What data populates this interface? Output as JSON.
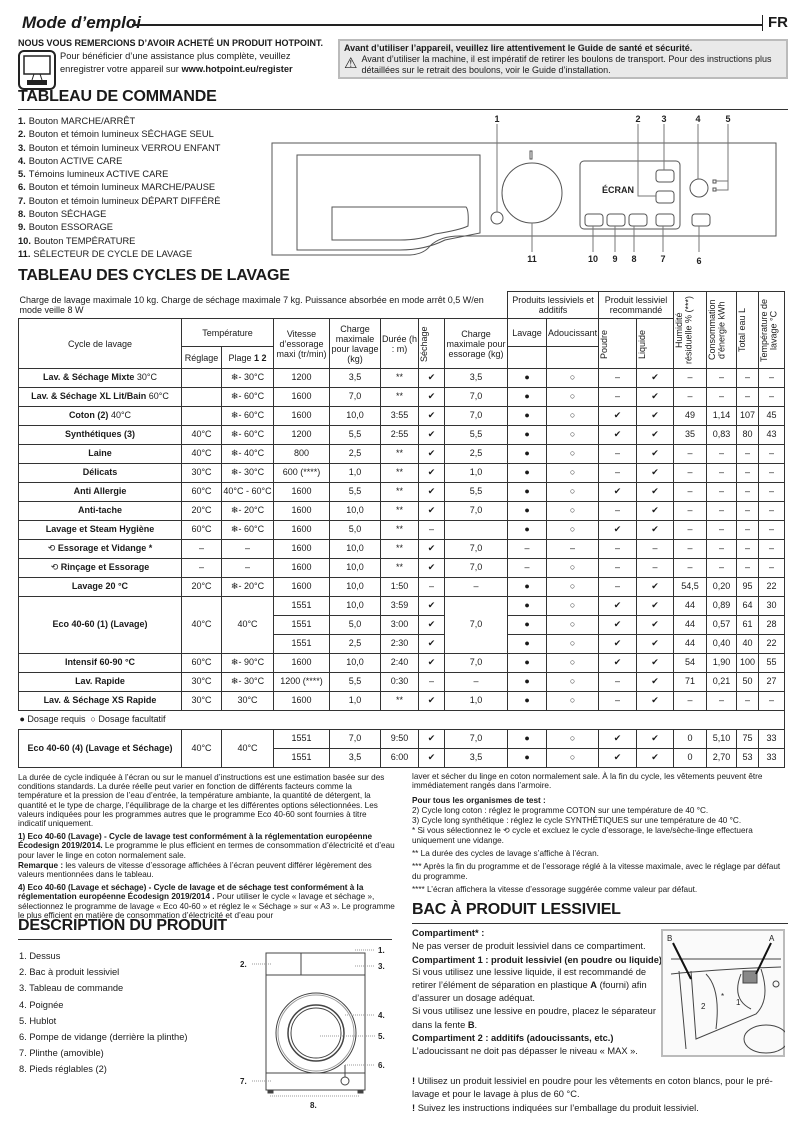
{
  "header": {
    "title": "Mode d’emploi",
    "lang": "FR"
  },
  "intro": {
    "thanks": "NOUS VOUS REMERCIONS D’AVOIR ACHETÉ UN PRODUIT HOTPOINT.",
    "register_line1": "Pour bénéficier d’une assistance plus complète, veuillez",
    "register_line2": "enregistrer votre appareil sur ",
    "register_url": "www.hotpoint.eu/register"
  },
  "warning": {
    "title": "Avant d’utiliser l’appareil, veuillez lire attentivement le Guide de santé et sécurité.",
    "text": "Avant d’utiliser la machine, il est impératif de retirer les boulons de transport. Pour des instructions plus détaillées sur le retrait des boulons, voir le Guide d’installation."
  },
  "control_panel": {
    "title": "TABLEAU DE COMMANDE",
    "items": [
      {
        "n": "1.",
        "label": "Bouton MARCHE/ARRÊT"
      },
      {
        "n": "2.",
        "label": "Bouton et témoin lumineux SÉCHAGE SEUL"
      },
      {
        "n": "3.",
        "label": "Bouton et témoin lumineux VERROU ENFANT"
      },
      {
        "n": "4.",
        "label": "Bouton ACTIVE CARE"
      },
      {
        "n": "5.",
        "label": "Témoins lumineux ACTIVE CARE"
      },
      {
        "n": "6.",
        "label": "Bouton et témoin lumineux MARCHE/PAUSE"
      },
      {
        "n": "7.",
        "label": "Bouton et témoin lumineux DÉPART DIFFÉRÉ"
      },
      {
        "n": "8.",
        "label": "Bouton SÉCHAGE"
      },
      {
        "n": "9.",
        "label": "Bouton ESSORAGE"
      },
      {
        "n": "10.",
        "label": "Bouton TEMPÉRATURE"
      },
      {
        "n": "11.",
        "label": "SÉLECTEUR DE CYCLE DE LAVAGE"
      }
    ],
    "diagram": {
      "screen_label": "ÉCRAN",
      "callouts": [
        "1",
        "2",
        "3",
        "4",
        "5",
        "6",
        "7",
        "8",
        "9",
        "10",
        "11"
      ]
    }
  },
  "cycles": {
    "title": "TABLEAU DES CYCLES DE LAVAGE",
    "caption": "Charge de lavage maximale 10 kg. Charge de séchage maximale 7 kg. Puissance absorbée en mode arrêt 0,5 W/en mode veille 8 W",
    "headers": {
      "products": "Produits lessiviels et additifs",
      "recommended": "Produit lessiviel recommandé",
      "humidity": "Humidité résiduelle % (***)",
      "energy": "Consommation d’énergie kWh",
      "water": "Total eau L",
      "wash_temp": "Température de lavage °C",
      "cycle": "Cycle de lavage",
      "temperature": "Température",
      "speed": "Vitesse d’essorage maxi (tr/min)",
      "max_wash": "Charge maximale pour lavage (kg)",
      "duration": "Durée (h : m)",
      "drying": "Séchage",
      "max_spin": "Charge maximale pour essorage (kg)",
      "wash": "Lavage",
      "softener": "Adoucissant",
      "powder": "Poudre",
      "liquid": "Liquide",
      "setting": "Réglage",
      "range": "Plage",
      "range_nums": "1 2"
    },
    "rows": [
      {
        "cycle": "Lav. & Séchage Mixte",
        "suffix": " 30°C",
        "cells": [
          "",
          "❄- 30°C",
          "1200",
          "3,5",
          "**",
          "✔",
          "3,5",
          "●",
          "○",
          "–",
          "✔",
          "–",
          "–",
          "–",
          "–"
        ]
      },
      {
        "cycle": "Lav. & Séchage XL Lit/Bain",
        "suffix": " 60°C",
        "cells": [
          "",
          "❄- 60°C",
          "1600",
          "7,0",
          "**",
          "✔",
          "7,0",
          "●",
          "○",
          "–",
          "✔",
          "–",
          "–",
          "–",
          "–"
        ]
      },
      {
        "cycle": "Coton (2)",
        "suffix": " 40°C",
        "cells": [
          "",
          "❄- 60°C",
          "1600",
          "10,0",
          "3:55",
          "✔",
          "7,0",
          "●",
          "○",
          "✔",
          "✔",
          "49",
          "1,14",
          "107",
          "45"
        ]
      },
      {
        "cycle": "Synthétiques (3)",
        "suffix": "",
        "cells": [
          "40°C",
          "❄- 60°C",
          "1200",
          "5,5",
          "2:55",
          "✔",
          "5,5",
          "●",
          "○",
          "✔",
          "✔",
          "35",
          "0,83",
          "80",
          "43"
        ]
      },
      {
        "cycle": "Laine",
        "suffix": "",
        "cells": [
          "40°C",
          "❄- 40°C",
          "800",
          "2,5",
          "**",
          "✔",
          "2,5",
          "●",
          "○",
          "–",
          "✔",
          "–",
          "–",
          "–",
          "–"
        ]
      },
      {
        "cycle": "Délicats",
        "suffix": "",
        "cells": [
          "30°C",
          "❄- 30°C",
          "600 (****)",
          "1,0",
          "**",
          "✔",
          "1,0",
          "●",
          "○",
          "–",
          "✔",
          "–",
          "–",
          "–",
          "–"
        ]
      },
      {
        "cycle": "Anti Allergie",
        "suffix": "",
        "cells": [
          "60°C",
          "40°C - 60°C",
          "1600",
          "5,5",
          "**",
          "✔",
          "5,5",
          "●",
          "○",
          "✔",
          "✔",
          "–",
          "–",
          "–",
          "–"
        ]
      },
      {
        "cycle": "Anti-tache",
        "suffix": "",
        "cells": [
          "20°C",
          "❄- 20°C",
          "1600",
          "10,0",
          "**",
          "✔",
          "7,0",
          "●",
          "○",
          "–",
          "✔",
          "–",
          "–",
          "–",
          "–"
        ]
      },
      {
        "cycle": "Lavage et Steam Hygiène",
        "suffix": "",
        "cells": [
          "60°C",
          "❄- 60°C",
          "1600",
          "5,0",
          "**",
          "–",
          "",
          "●",
          "○",
          "✔",
          "✔",
          "–",
          "–",
          "–",
          "–"
        ]
      },
      {
        "cycle": "Essorage et Vidange *",
        "suffix": "",
        "icon": "spin-drain",
        "cells": [
          "–",
          "–",
          "1600",
          "10,0",
          "**",
          "✔",
          "7,0",
          "–",
          "–",
          "–",
          "–",
          "–",
          "–",
          "–",
          "–"
        ]
      },
      {
        "cycle": "Rinçage et Essorage",
        "suffix": "",
        "icon": "rinse-spin",
        "cells": [
          "–",
          "–",
          "1600",
          "10,0",
          "**",
          "✔",
          "7,0",
          "–",
          "○",
          "–",
          "–",
          "–",
          "–",
          "–",
          "–"
        ]
      },
      {
        "cycle": "Lavage 20 °C",
        "suffix": "",
        "cells": [
          "20°C",
          "❄- 20°C",
          "1600",
          "10,0",
          "1:50",
          "–",
          "–",
          "●",
          "○",
          "–",
          "✔",
          "54,5",
          "0,20",
          "95",
          "22"
        ]
      },
      {
        "cycle": "Eco 40-60 (1) (Lavage)",
        "suffix": "",
        "group": {
          "reglage": "40°C",
          "plage": "40°C",
          "charge_ess": "7,0",
          "subs": [
            [
              "1551",
              "10,0",
              "3:59",
              "✔",
              "●",
              "○",
              "✔",
              "✔",
              "44",
              "0,89",
              "64",
              "30"
            ],
            [
              "1551",
              "5,0",
              "3:00",
              "✔",
              "●",
              "○",
              "✔",
              "✔",
              "44",
              "0,57",
              "61",
              "28"
            ],
            [
              "1551",
              "2,5",
              "2:30",
              "✔",
              "●",
              "○",
              "✔",
              "✔",
              "44",
              "0,40",
              "40",
              "22"
            ]
          ]
        }
      },
      {
        "cycle": "Intensif 60-90 °C",
        "suffix": "",
        "cells": [
          "60°C",
          "❄- 90°C",
          "1600",
          "10,0",
          "2:40",
          "✔",
          "7,0",
          "●",
          "○",
          "✔",
          "✔",
          "54",
          "1,90",
          "100",
          "55"
        ]
      },
      {
        "cycle": "Lav. Rapide",
        "suffix": "",
        "cells": [
          "30°C",
          "❄- 30°C",
          "1200 (****)",
          "5,5",
          "0:30",
          "–",
          "–",
          "●",
          "○",
          "–",
          "✔",
          "71",
          "0,21",
          "50",
          "27"
        ]
      },
      {
        "cycle": "Lav. & Séchage XS Rapide",
        "suffix": "",
        "cells": [
          "30°C",
          "30°C",
          "1600",
          "1,0",
          "**",
          "✔",
          "1,0",
          "●",
          "○",
          "–",
          "✔",
          "–",
          "–",
          "–",
          "–"
        ]
      }
    ],
    "legend": {
      "required": "● Dosage requis",
      "optional": "○ Dosage facultatif"
    },
    "rows_after": [
      {
        "cycle": "Eco 40-60 (4) (Lavage et Séchage)",
        "suffix": "",
        "group": {
          "reglage": "40°C",
          "plage": "40°C",
          "charge_ess": "",
          "subs": [
            [
              "1551",
              "7,0",
              "9:50",
              "✔",
              "●",
              "○",
              "✔",
              "✔",
              "0",
              "5,10",
              "75",
              "33"
            ],
            [
              "1551",
              "3,5",
              "6:00",
              "✔",
              "●",
              "○",
              "✔",
              "✔",
              "0",
              "2,70",
              "53",
              "33"
            ]
          ],
          "spin": [
            "7,0",
            "3,5"
          ]
        }
      }
    ]
  },
  "notes": {
    "intro": "La durée de cycle indiquée à l’écran ou sur le manuel d’instructions est une estimation basée sur des conditions standards. La durée réelle peut varier en fonction de différents facteurs comme la température et la pression de l’eau d’entrée, la température ambiante, la quantité de détergent, la quantité et le type de charge, l’équilibrage de la charge et les différentes options sélectionnées. Les valeurs indiquées pour les programmes autres que le programme Eco 40-60 sont fournies à titre indicatif uniquement.",
    "n1_bold": "1) Eco 40-60 (Lavage) - Cycle de lavage test conformément à la réglementation européenne Écodesign 2019/2014.",
    "n1_text": " Le programme le plus efficient en termes de consommation d’électricité et d’eau pour laver le linge en coton normalement sale.",
    "remark_bold": "Remarque :",
    "remark_text": " les valeurs de vitesse d’essorage affichées à l’écran peuvent différer légèrement des valeurs mentionnées dans le tableau.",
    "n4_bold": "4) Eco 40-60 (Lavage et séchage) - Cycle de lavage et de séchage test conformément à la réglementation européenne Écodesign 2019/2014 .",
    "n4_text": " Pour utiliser le cycle « lavage et séchage », sélectionnez le programme de lavage « Eco 40-60 » et réglez le « Séchage » sur « A3 ». Le programme le plus efficient en matière de consommation d’électricité et d’eau pour",
    "n4_cont": "laver et sécher du linge en coton normalement sale. À la fin du cycle, les vêtements peuvent être immédiatement rangés dans l’armoire.",
    "test_title": "Pour tous les organismes de test :",
    "n2": "2)  Cycle long coton : réglez le programme COTON sur une température de 40 °C.",
    "n3": "3)  Cycle long synthétique : réglez le cycle SYNTHÉTIQUES sur une température de 40 °C.",
    "star1_a": "*  Si vous sélectionnez le ",
    "star1_b": " cycle et excluez le cycle d’essorage, le lave/sèche-linge effectuera uniquement une vidange.",
    "star2": "**  La durée des cycles de lavage s’affiche à l’écran.",
    "star3": "*** Après la fin du programme et de l’essorage réglé à la vitesse maximale, avec le réglage par défaut du programme.",
    "star4": "**** L’écran affichera la vitesse d’essorage suggérée comme valeur par défaut."
  },
  "dispenser": {
    "title": "BAC À PRODUIT LESSIVIEL",
    "c_star_title": "Compartiment* :",
    "c_star_text": "Ne pas verser de produit lessiviel dans ce compartiment.",
    "c1_title": "Compartiment 1 : produit lessiviel (en poudre ou liquide)",
    "c1_text_a": "Si vous utilisez une lessive liquide, il est recommandé de retirer l’élément de séparation en plastique ",
    "c1_A": "A",
    "c1_text_b": " (fourni) afin d’assurer un dosage adéquat.",
    "c1_text_c": "Si vous utilisez une lessive en poudre, placez le séparateur dans la fente ",
    "c1_B": "B",
    "c2_title": "Compartiment 2 : additifs (adoucissants, etc.)",
    "c2_text": "L’adoucissant ne doit pas dépasser le niveau « MAX ».",
    "tip1": "Utilisez un produit lessiviel en poudre pour les vêtements en coton blancs, pour le pré-lavage et pour le lavage à plus de 60 °C.",
    "tip2": "Suivez les instructions indiquées sur l’emballage du produit lessiviel.",
    "figure_labels": {
      "a": "A",
      "b": "B",
      "c1": "1",
      "c2": "2",
      "star": "*"
    }
  },
  "description": {
    "title": "DESCRIPTION DU PRODUIT",
    "items": [
      "1.  Dessus",
      "2.  Bac à produit lessiviel",
      "3.  Tableau de commande",
      "4.  Poignée",
      "5.  Hublot",
      "6.  Pompe de vidange (derrière la plinthe)",
      "7.  Plinthe (amovible)",
      "8.  Pieds réglables (2)"
    ],
    "callouts": [
      "1.",
      "2.",
      "3.",
      "4.",
      "5.",
      "6.",
      "7.",
      "8."
    ]
  }
}
